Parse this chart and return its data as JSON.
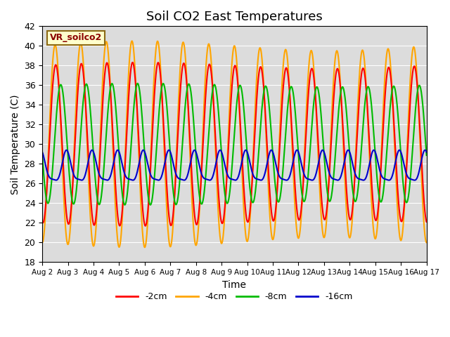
{
  "title": "Soil CO2 East Temperatures",
  "xlabel": "Time",
  "ylabel": "Soil Temperature (C)",
  "ylim": [
    18,
    42
  ],
  "xtick_labels": [
    "Aug 2",
    "Aug 3",
    "Aug 4",
    "Aug 5",
    "Aug 6",
    "Aug 7",
    "Aug 8",
    "Aug 9",
    "Aug 10",
    "Aug 11",
    "Aug 12",
    "Aug 13",
    "Aug 14",
    "Aug 15",
    "Aug 16",
    "Aug 17"
  ],
  "ytick_values": [
    18,
    20,
    22,
    24,
    26,
    28,
    30,
    32,
    34,
    36,
    38,
    40,
    42
  ],
  "series": {
    "-2cm": {
      "color": "#ff0000",
      "linewidth": 1.5
    },
    "-4cm": {
      "color": "#ffa500",
      "linewidth": 1.5
    },
    "-8cm": {
      "color": "#00bb00",
      "linewidth": 1.5
    },
    "-16cm": {
      "color": "#0000cc",
      "linewidth": 1.5
    }
  },
  "legend_label": "VR_soilco2",
  "legend_box_facecolor": "#ffffcc",
  "legend_box_edgecolor": "#8B6914",
  "background_color": "#e8e8e8",
  "plot_bg_color": "#dcdcdc",
  "title_fontsize": 13,
  "axis_label_fontsize": 10
}
